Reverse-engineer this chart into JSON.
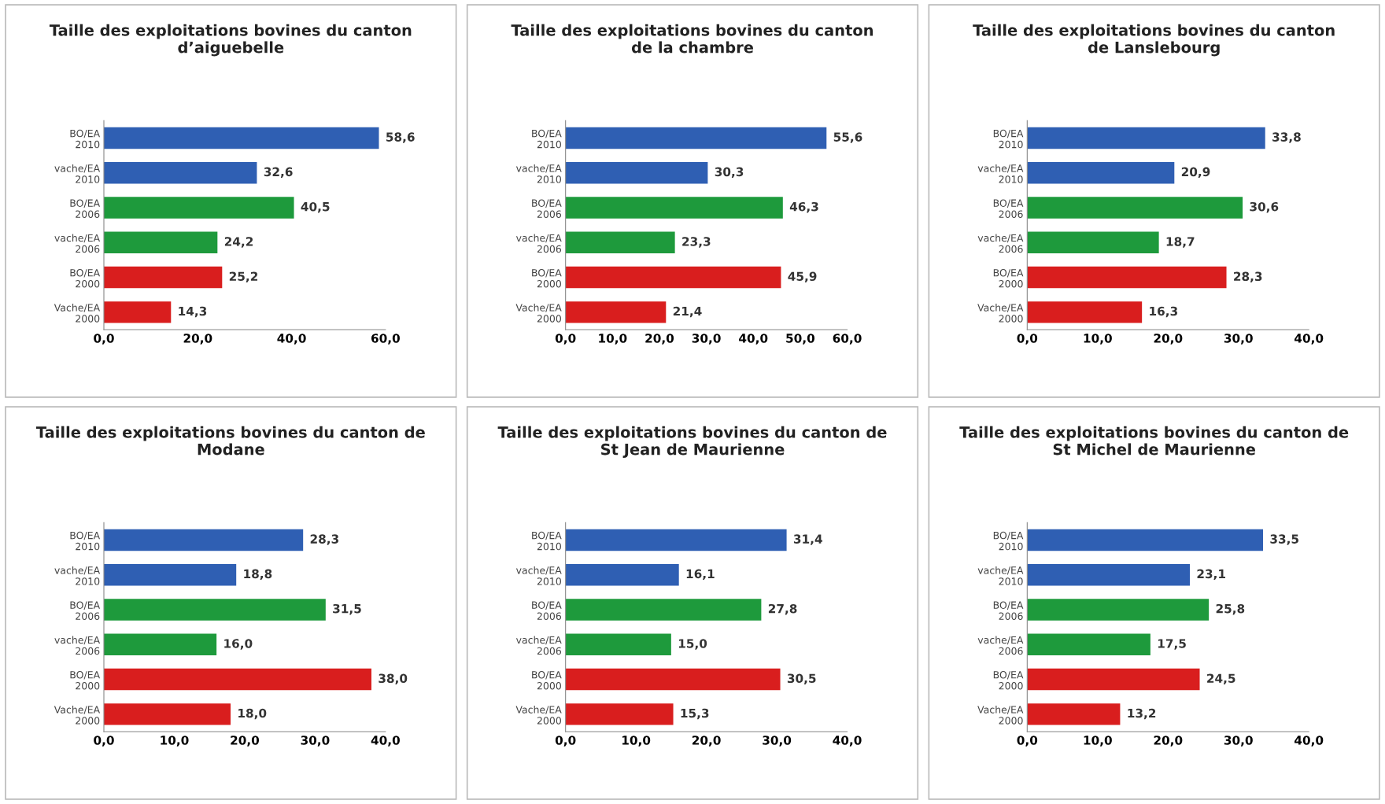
{
  "chart_data": [
    {
      "type": "bar",
      "orientation": "horizontal",
      "title": "Taille des exploitations bovines du canton\nd’aiguebelle",
      "categories": [
        "BO/EA\n2010",
        "vache/EA\n2010",
        "BO/EA\n2006",
        "vache/EA\n2006",
        "BO/EA\n2000",
        "Vache/EA\n2000"
      ],
      "values": [
        58.6,
        32.6,
        40.5,
        24.2,
        25.2,
        14.3
      ],
      "value_labels": [
        "58,6",
        "32,6",
        "40,5",
        "24,2",
        "25,2",
        "14,3"
      ],
      "colors": [
        "#2f5fb3",
        "#2f5fb3",
        "#1e9a3c",
        "#1e9a3c",
        "#d91e1e",
        "#d91e1e"
      ],
      "xlim": [
        0,
        60
      ],
      "xticks": [
        {
          "value": 0,
          "label": "0,0"
        },
        {
          "value": 20,
          "label": "20,0"
        },
        {
          "value": 40,
          "label": "40,0"
        },
        {
          "value": 60,
          "label": "60,0"
        }
      ],
      "grid": false,
      "legend": false
    },
    {
      "type": "bar",
      "orientation": "horizontal",
      "title": "Taille des exploitations bovines du canton\nde la chambre",
      "categories": [
        "BO/EA\n2010",
        "vache/EA\n2010",
        "BO/EA\n2006",
        "vache/EA\n2006",
        "BO/EA\n2000",
        "Vache/EA\n2000"
      ],
      "values": [
        55.6,
        30.3,
        46.3,
        23.3,
        45.9,
        21.4
      ],
      "value_labels": [
        "55,6",
        "30,3",
        "46,3",
        "23,3",
        "45,9",
        "21,4"
      ],
      "colors": [
        "#2f5fb3",
        "#2f5fb3",
        "#1e9a3c",
        "#1e9a3c",
        "#d91e1e",
        "#d91e1e"
      ],
      "xlim": [
        0,
        60
      ],
      "xticks": [
        {
          "value": 0,
          "label": "0,0"
        },
        {
          "value": 10,
          "label": "10,0"
        },
        {
          "value": 20,
          "label": "20,0"
        },
        {
          "value": 30,
          "label": "30,0"
        },
        {
          "value": 40,
          "label": "40,0"
        },
        {
          "value": 50,
          "label": "50,0"
        },
        {
          "value": 60,
          "label": "60,0"
        }
      ],
      "grid": false,
      "legend": false
    },
    {
      "type": "bar",
      "orientation": "horizontal",
      "title": "Taille des exploitations bovines du canton\nde Lanslebourg",
      "categories": [
        "BO/EA\n2010",
        "vache/EA\n2010",
        "BO/EA\n2006",
        "vache/EA\n2006",
        "BO/EA\n2000",
        "Vache/EA\n2000"
      ],
      "values": [
        33.8,
        20.9,
        30.6,
        18.7,
        28.3,
        16.3
      ],
      "value_labels": [
        "33,8",
        "20,9",
        "30,6",
        "18,7",
        "28,3",
        "16,3"
      ],
      "colors": [
        "#2f5fb3",
        "#2f5fb3",
        "#1e9a3c",
        "#1e9a3c",
        "#d91e1e",
        "#d91e1e"
      ],
      "xlim": [
        0,
        40
      ],
      "xticks": [
        {
          "value": 0,
          "label": "0,0"
        },
        {
          "value": 10,
          "label": "10,0"
        },
        {
          "value": 20,
          "label": "20,0"
        },
        {
          "value": 30,
          "label": "30,0"
        },
        {
          "value": 40,
          "label": "40,0"
        }
      ],
      "grid": false,
      "legend": false
    },
    {
      "type": "bar",
      "orientation": "horizontal",
      "title": "Taille des exploitations bovines du canton de\nModane",
      "categories": [
        "BO/EA\n2010",
        "vache/EA\n2010",
        "BO/EA\n2006",
        "vache/EA\n2006",
        "BO/EA\n2000",
        "Vache/EA\n2000"
      ],
      "values": [
        28.3,
        18.8,
        31.5,
        16.0,
        38.0,
        18.0
      ],
      "value_labels": [
        "28,3",
        "18,8",
        "31,5",
        "16,0",
        "38,0",
        "18,0"
      ],
      "colors": [
        "#2f5fb3",
        "#2f5fb3",
        "#1e9a3c",
        "#1e9a3c",
        "#d91e1e",
        "#d91e1e"
      ],
      "xlim": [
        0,
        40
      ],
      "xticks": [
        {
          "value": 0,
          "label": "0,0"
        },
        {
          "value": 10,
          "label": "10,0"
        },
        {
          "value": 20,
          "label": "20,0"
        },
        {
          "value": 30,
          "label": "30,0"
        },
        {
          "value": 40,
          "label": "40,0"
        }
      ],
      "grid": false,
      "legend": false
    },
    {
      "type": "bar",
      "orientation": "horizontal",
      "title": "Taille des exploitations bovines du canton de\nSt Jean de Maurienne",
      "categories": [
        "BO/EA\n2010",
        "vache/EA\n2010",
        "BO/EA\n2006",
        "vache/EA\n2006",
        "BO/EA\n2000",
        "Vache/EA\n2000"
      ],
      "values": [
        31.4,
        16.1,
        27.8,
        15.0,
        30.5,
        15.3
      ],
      "value_labels": [
        "31,4",
        "16,1",
        "27,8",
        "15,0",
        "30,5",
        "15,3"
      ],
      "colors": [
        "#2f5fb3",
        "#2f5fb3",
        "#1e9a3c",
        "#1e9a3c",
        "#d91e1e",
        "#d91e1e"
      ],
      "xlim": [
        0,
        40
      ],
      "xticks": [
        {
          "value": 0,
          "label": "0,0"
        },
        {
          "value": 10,
          "label": "10,0"
        },
        {
          "value": 20,
          "label": "20,0"
        },
        {
          "value": 30,
          "label": "30,0"
        },
        {
          "value": 40,
          "label": "40,0"
        }
      ],
      "grid": false,
      "legend": false
    },
    {
      "type": "bar",
      "orientation": "horizontal",
      "title": "Taille des exploitations bovines du canton de\nSt Michel de Maurienne",
      "categories": [
        "BO/EA\n2010",
        "vache/EA\n2010",
        "BO/EA\n2006",
        "vache/EA\n2006",
        "BO/EA\n2000",
        "Vache/EA\n2000"
      ],
      "values": [
        33.5,
        23.1,
        25.8,
        17.5,
        24.5,
        13.2
      ],
      "value_labels": [
        "33,5",
        "23,1",
        "25,8",
        "17,5",
        "24,5",
        "13,2"
      ],
      "colors": [
        "#2f5fb3",
        "#2f5fb3",
        "#1e9a3c",
        "#1e9a3c",
        "#d91e1e",
        "#d91e1e"
      ],
      "xlim": [
        0,
        40
      ],
      "xticks": [
        {
          "value": 0,
          "label": "0,0"
        },
        {
          "value": 10,
          "label": "10,0"
        },
        {
          "value": 20,
          "label": "20,0"
        },
        {
          "value": 30,
          "label": "30,0"
        },
        {
          "value": 40,
          "label": "40,0"
        }
      ],
      "grid": false,
      "legend": false
    }
  ]
}
